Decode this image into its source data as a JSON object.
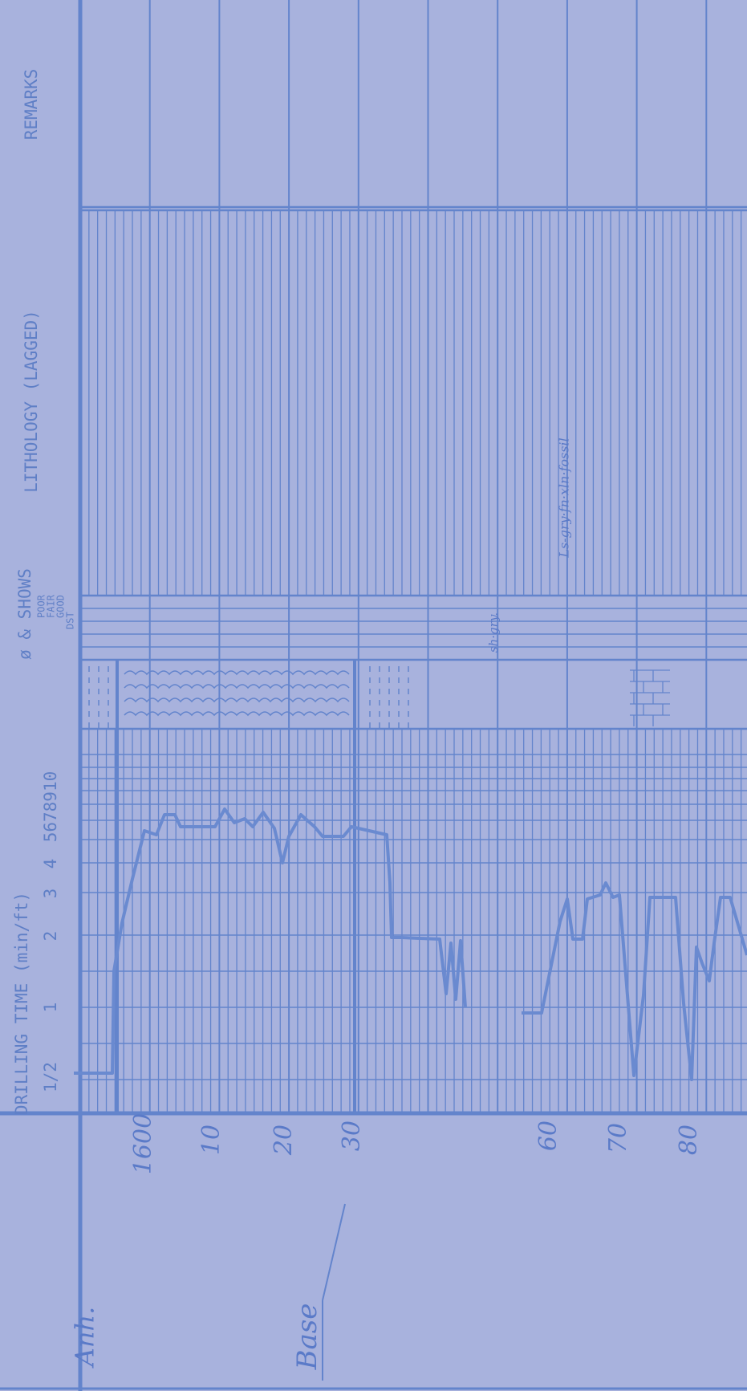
{
  "header": {
    "remarks": "REMARKS",
    "lithology": "LITHOLOGY (LAGGED)",
    "shows": "ø & SHOWS",
    "show_levels": [
      "POOR",
      "FAIR",
      "GOOD",
      "DST"
    ],
    "drilling_time": "DRILLING TIME (min/ft)",
    "drilling_scale": [
      "1/2",
      "1",
      "2",
      "3",
      "4",
      "5678910"
    ]
  },
  "depths": [
    "1600",
    "10",
    "20",
    "30",
    "60",
    "70",
    "80"
  ],
  "annotations": {
    "top": "Anh.",
    "base": "Base",
    "lithology_notes": [
      "sh·gry.",
      "Ls-gry·fn·xln·fossil"
    ]
  }
}
